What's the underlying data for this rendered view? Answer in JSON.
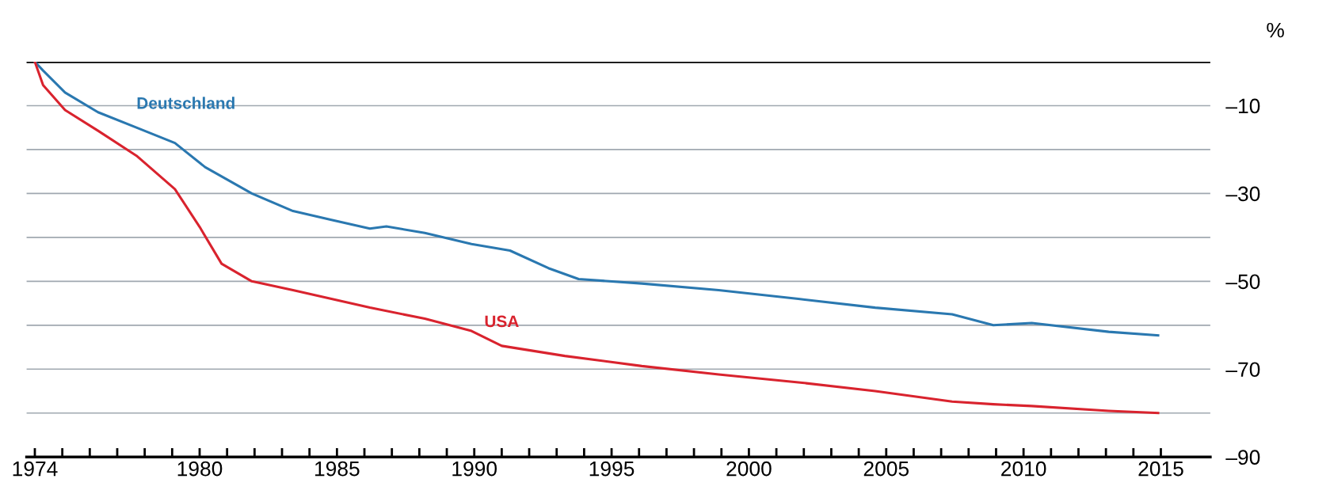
{
  "chart_data": {
    "type": "line",
    "ylabel": "%",
    "grid": "y",
    "legend": false,
    "marker": "none",
    "line_style": "solid",
    "xlim": [
      1973.7,
      2016.8
    ],
    "ylim": [
      -90,
      0
    ],
    "xticks": [
      1974,
      {
        "value": 1975,
        "label": null
      },
      {
        "value": 1976,
        "label": null
      },
      {
        "value": 1977,
        "label": null
      },
      {
        "value": 1978,
        "label": null
      },
      {
        "value": 1979,
        "label": null
      },
      1980,
      {
        "value": 1981,
        "label": null
      },
      {
        "value": 1982,
        "label": null
      },
      {
        "value": 1983,
        "label": null
      },
      {
        "value": 1984,
        "label": null
      },
      1985,
      {
        "value": 1986,
        "label": null
      },
      {
        "value": 1987,
        "label": null
      },
      {
        "value": 1988,
        "label": null
      },
      {
        "value": 1989,
        "label": null
      },
      1990,
      {
        "value": 1991,
        "label": null
      },
      {
        "value": 1992,
        "label": null
      },
      {
        "value": 1993,
        "label": null
      },
      {
        "value": 1994,
        "label": null
      },
      1995,
      {
        "value": 1996,
        "label": null
      },
      {
        "value": 1997,
        "label": null
      },
      {
        "value": 1998,
        "label": null
      },
      {
        "value": 1999,
        "label": null
      },
      2000,
      {
        "value": 2001,
        "label": null
      },
      {
        "value": 2002,
        "label": null
      },
      {
        "value": 2003,
        "label": null
      },
      {
        "value": 2004,
        "label": null
      },
      2005,
      {
        "value": 2006,
        "label": null
      },
      {
        "value": 2007,
        "label": null
      },
      {
        "value": 2008,
        "label": null
      },
      {
        "value": 2009,
        "label": null
      },
      2010,
      {
        "value": 2011,
        "label": null
      },
      {
        "value": 2012,
        "label": null
      },
      {
        "value": 2013,
        "label": null
      },
      {
        "value": 2014,
        "label": null
      },
      2015
    ],
    "yticks": [
      {
        "value": 0,
        "label": null
      },
      {
        "value": -10,
        "label": "–10"
      },
      {
        "value": -20,
        "label": null
      },
      {
        "value": -30,
        "label": "–30"
      },
      {
        "value": -40,
        "label": null
      },
      {
        "value": -50,
        "label": "–50"
      },
      {
        "value": -60,
        "label": null
      },
      {
        "value": -70,
        "label": "–70"
      },
      {
        "value": -80,
        "label": null
      },
      {
        "value": -90,
        "label": "–90"
      }
    ],
    "ref_lines": [
      {
        "axis": "y",
        "value": 0,
        "label": null,
        "color": "#000000"
      }
    ],
    "series": [
      {
        "name": "Deutschland",
        "color": "#2a78b0",
        "x": [
          1974.0,
          1974.3,
          1975.1,
          1976.3,
          1977.7,
          1979.1,
          1980.2,
          1981.9,
          1983.4,
          1984.8,
          1986.2,
          1986.8,
          1988.2,
          1989.9,
          1991.3,
          1992.7,
          1993.8,
          1996.1,
          1998.9,
          2001.8,
          2004.6,
          2007.4,
          2008.9,
          2010.3,
          2013.1,
          2014.9
        ],
        "values": [
          0,
          -2,
          -7,
          -11.5,
          -15,
          -18.5,
          -24,
          -30,
          -34,
          -36,
          -38,
          -37.5,
          -39,
          -41.5,
          -43,
          -47,
          -49.5,
          -50.5,
          -52,
          -54,
          -56,
          -57.5,
          -60,
          -59.5,
          -61.5,
          -62.3
        ]
      },
      {
        "name": "USA",
        "color": "#d9232e",
        "x": [
          1974.0,
          1974.3,
          1975.1,
          1976.3,
          1977.7,
          1979.1,
          1980.0,
          1980.8,
          1981.9,
          1983.4,
          1984.8,
          1986.2,
          1988.2,
          1989.9,
          1991.0,
          1993.3,
          1996.1,
          1998.9,
          2001.8,
          2004.6,
          2007.4,
          2008.9,
          2010.3,
          2013.1,
          2014.9
        ],
        "values": [
          0,
          -5.3,
          -11,
          -15.7,
          -21.4,
          -29,
          -37.6,
          -46,
          -50,
          -52,
          -54,
          -56,
          -58.5,
          -61.3,
          -64.7,
          -67,
          -69.3,
          -71.2,
          -73,
          -75,
          -77.4,
          -78,
          -78.4,
          -79.5,
          -80
        ]
      }
    ]
  }
}
